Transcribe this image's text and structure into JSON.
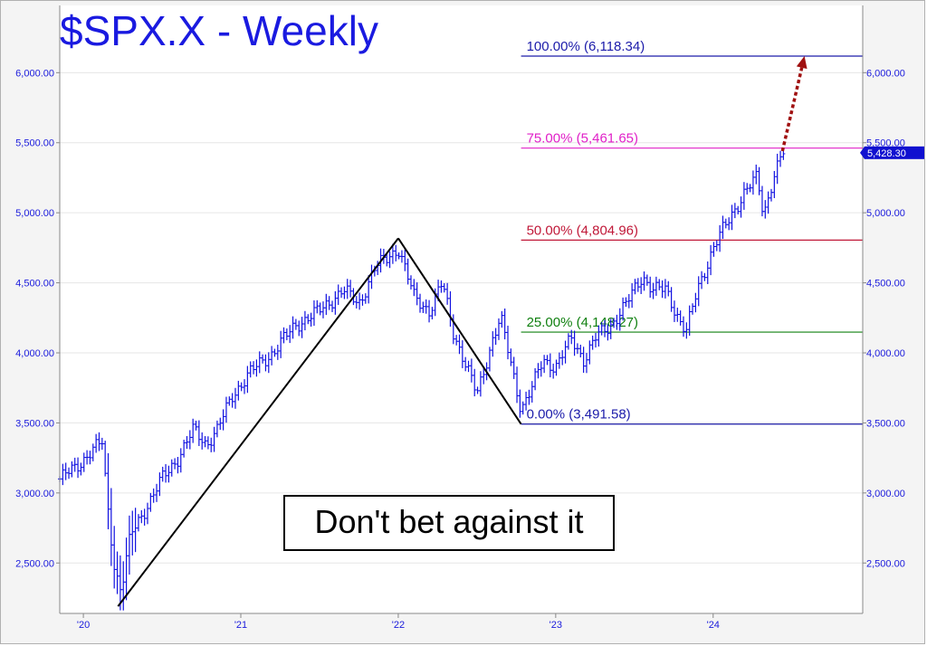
{
  "chart_data": {
    "type": "ohlc",
    "title": "$SPX.X - Weekly",
    "annotation": "Don't bet against it",
    "y_ticks": [
      {
        "value": 2500,
        "label": "2,500.00"
      },
      {
        "value": 3000,
        "label": "3,000.00"
      },
      {
        "value": 3500,
        "label": "3,500.00"
      },
      {
        "value": 4000,
        "label": "4,000.00"
      },
      {
        "value": 4500,
        "label": "4,500.00"
      },
      {
        "value": 5000,
        "label": "5,000.00"
      },
      {
        "value": 5500,
        "label": "5,500.00"
      },
      {
        "value": 6000,
        "label": "6,000.00"
      }
    ],
    "x_ticks": [
      {
        "value": 2020.0,
        "label": "'20"
      },
      {
        "value": 2021.0,
        "label": "'21"
      },
      {
        "value": 2022.0,
        "label": "'22"
      },
      {
        "value": 2023.0,
        "label": "'23"
      },
      {
        "value": 2024.0,
        "label": "'24"
      }
    ],
    "ylim": [
      2140,
      6480
    ],
    "xlim": [
      2019.85,
      2024.95
    ],
    "last_price": {
      "value": 5428.3,
      "label": "5,428.30",
      "color": "#1010d0"
    },
    "fib_levels": [
      {
        "pct": "100.00%",
        "value": 6118.34,
        "label": "100.00% (6,118.34)",
        "color": "#1c1caa"
      },
      {
        "pct": "75.00%",
        "value": 5461.65,
        "label": "75.00% (5,461.65)",
        "color": "#e020c8"
      },
      {
        "pct": "50.00%",
        "value": 4804.96,
        "label": "50.00% (4,804.96)",
        "color": "#c01838"
      },
      {
        "pct": "25.00%",
        "value": 4148.27,
        "label": "25.00% (4,148.27)",
        "color": "#108010"
      },
      {
        "pct": "0.00%",
        "value": 3491.58,
        "label": "0.00% (3,491.58)",
        "color": "#1c1caa"
      }
    ],
    "fib_start_x": 2022.78,
    "trend_lines": [
      {
        "x1": 2020.22,
        "y1": 2191,
        "x2": 2022.0,
        "y2": 4818
      },
      {
        "x1": 2022.0,
        "y1": 4818,
        "x2": 2022.78,
        "y2": 3492
      }
    ],
    "projection": {
      "x1": 2024.44,
      "y1": 5440,
      "x2": 2024.58,
      "y2": 6118,
      "color": "#a01010"
    },
    "price_anchors": [
      [
        2019.85,
        3100
      ],
      [
        2019.95,
        3180
      ],
      [
        2020.05,
        3300
      ],
      [
        2020.12,
        3360
      ],
      [
        2020.15,
        2950
      ],
      [
        2020.2,
        2450
      ],
      [
        2020.24,
        2300
      ],
      [
        2020.3,
        2700
      ],
      [
        2020.4,
        2900
      ],
      [
        2020.5,
        3100
      ],
      [
        2020.6,
        3250
      ],
      [
        2020.7,
        3450
      ],
      [
        2020.78,
        3350
      ],
      [
        2020.85,
        3450
      ],
      [
        2020.95,
        3700
      ],
      [
        2021.05,
        3850
      ],
      [
        2021.2,
        4000
      ],
      [
        2021.35,
        4200
      ],
      [
        2021.5,
        4300
      ],
      [
        2021.65,
        4450
      ],
      [
        2021.75,
        4350
      ],
      [
        2021.85,
        4600
      ],
      [
        2021.95,
        4700
      ],
      [
        2022.0,
        4750
      ],
      [
        2022.1,
        4400
      ],
      [
        2022.2,
        4300
      ],
      [
        2022.28,
        4500
      ],
      [
        2022.35,
        4150
      ],
      [
        2022.45,
        3850
      ],
      [
        2022.5,
        3700
      ],
      [
        2022.6,
        4100
      ],
      [
        2022.65,
        4250
      ],
      [
        2022.72,
        3900
      ],
      [
        2022.78,
        3600
      ],
      [
        2022.85,
        3750
      ],
      [
        2022.92,
        3950
      ],
      [
        2023.0,
        3900
      ],
      [
        2023.1,
        4100
      ],
      [
        2023.18,
        3950
      ],
      [
        2023.25,
        4100
      ],
      [
        2023.35,
        4200
      ],
      [
        2023.45,
        4350
      ],
      [
        2023.55,
        4550
      ],
      [
        2023.62,
        4450
      ],
      [
        2023.7,
        4450
      ],
      [
        2023.78,
        4250
      ],
      [
        2023.83,
        4150
      ],
      [
        2023.9,
        4450
      ],
      [
        2024.0,
        4750
      ],
      [
        2024.1,
        4950
      ],
      [
        2024.2,
        5150
      ],
      [
        2024.28,
        5250
      ],
      [
        2024.32,
        4980
      ],
      [
        2024.38,
        5250
      ],
      [
        2024.44,
        5430
      ]
    ]
  }
}
